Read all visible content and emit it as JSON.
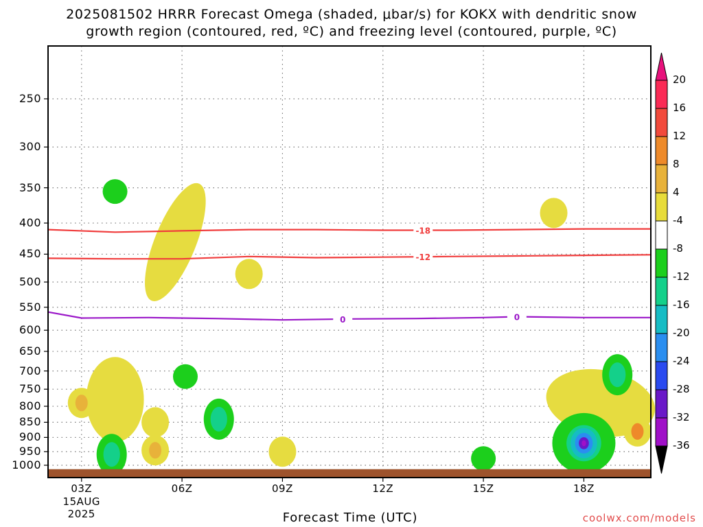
{
  "title": {
    "line1": "2025081502 HRRR Forecast Omega (shaded, μbar/s) for KOKX with dendritic snow",
    "line2": "growth region (contoured, red, ºC) and freezing level (contoured, purple, ºC)"
  },
  "credit": "coolwx.com/models",
  "chart_data": {
    "type": "contour",
    "xlabel": "Forecast Time (UTC)",
    "x_ticks": [
      {
        "hour": 3,
        "label": "03Z",
        "sub": [
          "15AUG",
          "2025"
        ]
      },
      {
        "hour": 6,
        "label": "06Z"
      },
      {
        "hour": 9,
        "label": "09Z"
      },
      {
        "hour": 12,
        "label": "12Z"
      },
      {
        "hour": 15,
        "label": "15Z"
      },
      {
        "hour": 18,
        "label": "18Z"
      }
    ],
    "xlim": [
      2,
      20
    ],
    "ylabel": "",
    "y_ticks": [
      250,
      300,
      350,
      400,
      450,
      500,
      550,
      600,
      650,
      700,
      750,
      800,
      850,
      900,
      950,
      1000
    ],
    "ylim_hPa": [
      200,
      1030
    ],
    "y_scale": "log-pressure (reversed)",
    "colorbar": {
      "labels": [
        "20",
        "16",
        "12",
        "8",
        "4",
        "-4",
        "-8",
        "-12",
        "-16",
        "-20",
        "-24",
        "-28",
        "-32",
        "-36"
      ],
      "colors": [
        "#fa2a55",
        "#f24a3c",
        "#ee8a2a",
        "#e8b23a",
        "#e8dc3a",
        "#ffffff",
        "#1ccf1c",
        "#14d08a",
        "#16bcc4",
        "#2a8ef0",
        "#2a4af0",
        "#6a18c8",
        "#a010c8",
        "#a0a0a0"
      ],
      "top_arrow_color": "#e8117c",
      "bottom_arrow_color": "#000000"
    },
    "contour_lines": [
      {
        "label": "-18",
        "color": "#f03c3c",
        "label_positions_hour": [
          11.4
        ],
        "label_hour": 13.2,
        "points": [
          [
            2,
            410
          ],
          [
            4,
            414
          ],
          [
            6,
            412
          ],
          [
            8,
            410
          ],
          [
            10,
            410
          ],
          [
            12,
            411
          ],
          [
            14,
            411
          ],
          [
            16,
            410
          ],
          [
            18,
            409
          ],
          [
            20,
            409
          ]
        ]
      },
      {
        "label": "-12",
        "color": "#f03c3c",
        "label_hour": 13.2,
        "points": [
          [
            2,
            457
          ],
          [
            4,
            458
          ],
          [
            6,
            458
          ],
          [
            8,
            454
          ],
          [
            10,
            456
          ],
          [
            12,
            455
          ],
          [
            14,
            454
          ],
          [
            16,
            453
          ],
          [
            18,
            452
          ],
          [
            20,
            451
          ]
        ]
      },
      {
        "label": "0",
        "color": "#9a16c8",
        "label_hours": [
          10.8,
          16.0
        ],
        "points": [
          [
            2,
            560
          ],
          [
            3,
            573
          ],
          [
            5,
            572
          ],
          [
            7,
            574
          ],
          [
            9,
            577
          ],
          [
            11,
            575
          ],
          [
            13,
            574
          ],
          [
            15,
            572
          ],
          [
            16,
            570
          ],
          [
            18,
            572
          ],
          [
            20,
            572
          ]
        ]
      }
    ],
    "features": [
      {
        "kind": "ascent",
        "level": 4,
        "hour": 4.0,
        "pres": 780,
        "size": "large"
      },
      {
        "kind": "ascent",
        "level": 8,
        "hour": 3.0,
        "pres": 790,
        "size": "small"
      },
      {
        "kind": "ascent",
        "level": 4,
        "hour": 5.8,
        "pres": 430,
        "size": "elongated"
      },
      {
        "kind": "ascent",
        "level": 4,
        "hour": 8.0,
        "pres": 485,
        "size": "small"
      },
      {
        "kind": "ascent",
        "level": 4,
        "hour": 5.2,
        "pres": 850,
        "size": "small"
      },
      {
        "kind": "ascent",
        "level": 8,
        "hour": 5.2,
        "pres": 945,
        "size": "small"
      },
      {
        "kind": "ascent",
        "level": 4,
        "hour": 9.0,
        "pres": 950,
        "size": "small"
      },
      {
        "kind": "ascent",
        "level": 4,
        "hour": 17.1,
        "pres": 385,
        "size": "small"
      },
      {
        "kind": "ascent",
        "level": 4,
        "hour": 18.5,
        "pres": 790,
        "size": "large"
      },
      {
        "kind": "ascent",
        "level": 12,
        "hour": 19.6,
        "pres": 880,
        "size": "small"
      },
      {
        "kind": "descent",
        "level": -4,
        "hour": 4.0,
        "pres": 355
      },
      {
        "kind": "descent",
        "level": -4,
        "hour": 6.1,
        "pres": 715
      },
      {
        "kind": "descent",
        "level": -8,
        "hour": 7.1,
        "pres": 840
      },
      {
        "kind": "descent",
        "level": -8,
        "hour": 3.9,
        "pres": 960
      },
      {
        "kind": "descent",
        "level": -4,
        "hour": 15.0,
        "pres": 975
      },
      {
        "kind": "descent",
        "level": -8,
        "hour": 19.0,
        "pres": 710
      },
      {
        "kind": "descent",
        "level": -32,
        "hour": 18.0,
        "pres": 920
      }
    ],
    "ground_fill_color": "#9e532c"
  }
}
